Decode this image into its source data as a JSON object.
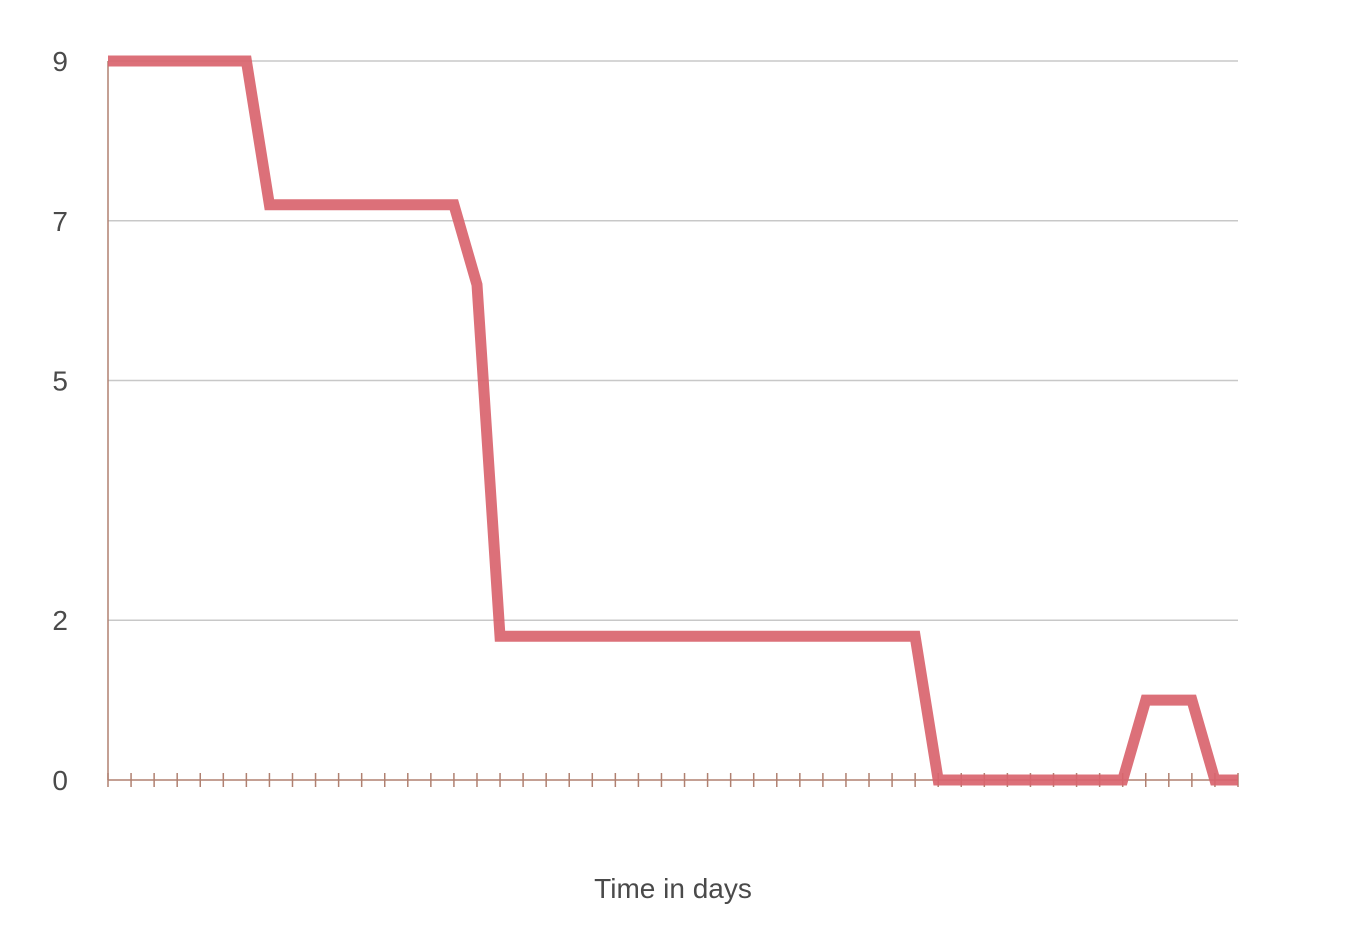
{
  "chart_data": {
    "type": "line",
    "title": "",
    "xlabel": "Time in days",
    "ylabel": "",
    "ylim": [
      0,
      9
    ],
    "y_ticks": [
      {
        "value": 0,
        "label": "0"
      },
      {
        "value": 2,
        "label": "2"
      },
      {
        "value": 5,
        "label": "5"
      },
      {
        "value": 7,
        "label": "7"
      },
      {
        "value": 9,
        "label": "9"
      }
    ],
    "xlim": [
      0,
      49
    ],
    "x_tick_count": 50,
    "grid": true,
    "series": [
      {
        "color": "#d9646e",
        "points": [
          [
            0,
            9
          ],
          [
            6,
            9
          ],
          [
            7,
            7.2
          ],
          [
            15,
            7.2
          ],
          [
            16,
            6.2
          ],
          [
            17,
            1.8
          ],
          [
            35,
            1.8
          ],
          [
            36,
            0
          ],
          [
            44,
            0
          ],
          [
            45,
            1.0
          ],
          [
            47,
            1.0
          ],
          [
            48,
            0
          ],
          [
            49,
            0
          ]
        ]
      }
    ],
    "colors": {
      "line": "#d9646e",
      "axis": "#b08070",
      "grid": "#c8c8c8",
      "text": "#4a4a4a"
    }
  }
}
